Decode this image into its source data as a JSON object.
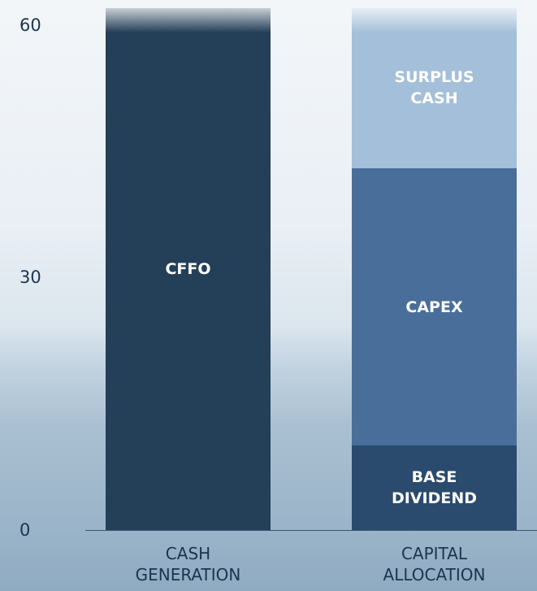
{
  "chart_data": {
    "type": "stacked_bar",
    "categories": [
      "CASH GENERATION",
      "CAPITAL ALLOCATION"
    ],
    "series": [
      {
        "name": "CFFO",
        "color": "#243f58",
        "values": [
          62,
          null
        ]
      },
      {
        "name": "BASE DIVIDEND",
        "color": "#2a4a6e",
        "values": [
          null,
          10
        ]
      },
      {
        "name": "CAPEX",
        "color": "#4a6e9a",
        "values": [
          null,
          33
        ]
      },
      {
        "name": "SURPLUS CASH",
        "color": "#a4bfd9",
        "values": [
          null,
          19
        ]
      }
    ],
    "ylim": [
      0,
      62
    ],
    "yticks": [
      0,
      30,
      60
    ]
  }
}
